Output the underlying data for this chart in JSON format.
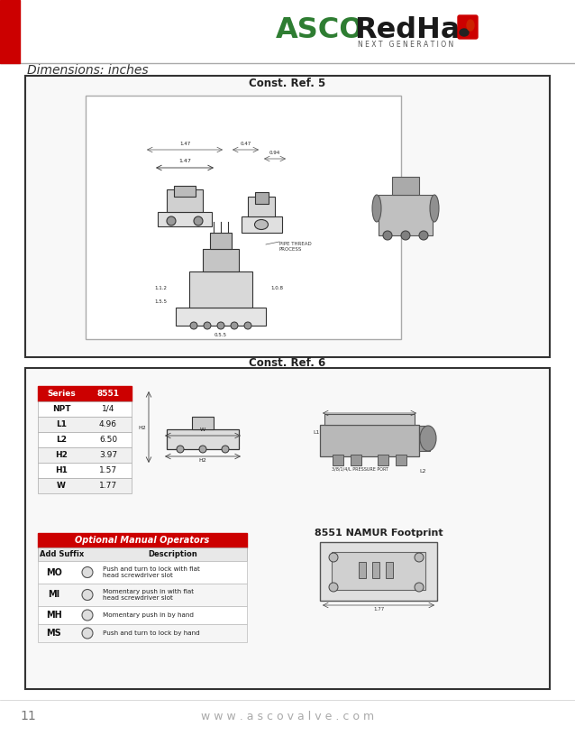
{
  "page_bg": "#ffffff",
  "header_bar_color": "#cc0000",
  "dimensions_label": "Dimensions: inches",
  "const_ref5": "Const. Ref. 5",
  "const_ref6": "Const. Ref. 6",
  "footer_number": "11",
  "footer_url": "w w w . a s c o v a l v e . c o m",
  "table_header_bg": "#cc0000",
  "table_series_label": "Series",
  "table_series_value": "8551",
  "table_rows": [
    [
      "NPT",
      "1/4"
    ],
    [
      "L1",
      "4.96"
    ],
    [
      "L2",
      "6.50"
    ],
    [
      "H2",
      "3.97"
    ],
    [
      "H1",
      "1.57"
    ],
    [
      "W",
      "1.77"
    ]
  ],
  "optional_header_bg": "#cc0000",
  "optional_header_text": "Optional Manual Operators",
  "optional_col1": "Add Suffix",
  "optional_col2": "Description",
  "optional_rows": [
    [
      "MO",
      "Push and turn to lock with flat\nhead screwdriver slot"
    ],
    [
      "MI",
      "Momentary push in with flat\nhead screwdriver slot"
    ],
    [
      "MH",
      "Momentary push in by hand"
    ],
    [
      "MS",
      "Push and turn to lock by hand"
    ]
  ],
  "namur_text": "8551 NAMUR Footprint",
  "outer_box_color": "#333333",
  "diagram_line_color": "#222222",
  "light_gray": "#cccccc",
  "dark_gray": "#555555",
  "next_gen_text": "N E X T   G E N E R A T I O N"
}
